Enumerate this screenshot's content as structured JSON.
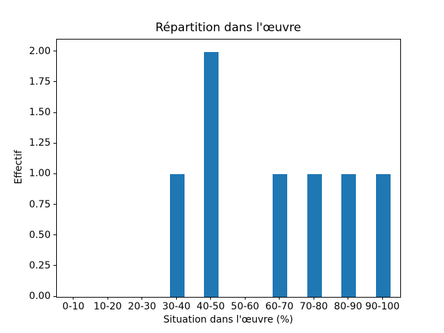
{
  "chart_data": {
    "type": "bar",
    "title": "Répartition dans l'œuvre",
    "xlabel": "Situation dans l'œuvre (%)",
    "ylabel": "Effectif",
    "categories": [
      "0-10",
      "10-20",
      "20-30",
      "30-40",
      "40-50",
      "50-60",
      "60-70",
      "70-80",
      "80-90",
      "90-100"
    ],
    "values": [
      0,
      0,
      0,
      1,
      2,
      0,
      1,
      1,
      1,
      1
    ],
    "ytick_labels": [
      "0.00",
      "0.25",
      "0.50",
      "0.75",
      "1.00",
      "1.25",
      "1.50",
      "1.75",
      "2.00"
    ],
    "ytick_values": [
      0,
      0.25,
      0.5,
      0.75,
      1,
      1.25,
      1.5,
      1.75,
      2
    ],
    "ylim": [
      0,
      2.1
    ],
    "bar_color": "#1f77b4",
    "axis_color": "#000000",
    "background_color": "#ffffff",
    "grid": false,
    "legend": "none"
  }
}
